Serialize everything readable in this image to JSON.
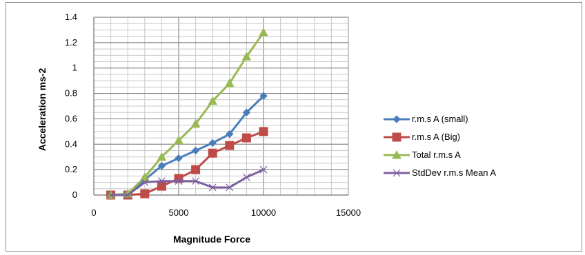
{
  "chart_data": {
    "type": "line",
    "title": "",
    "xlabel": "Magnitude Force",
    "ylabel": "Acceleration ms-2",
    "xlim": [
      0,
      15000
    ],
    "ylim": [
      0,
      1.4
    ],
    "x_ticks": [
      "0",
      "5000",
      "10000",
      "15000"
    ],
    "y_ticks": [
      "0",
      "0.2",
      "0.4",
      "0.6",
      "0.8",
      "1",
      "1.2",
      "1.4"
    ],
    "grid": true,
    "legend_position": "right",
    "x": [
      1000,
      2000,
      3000,
      4000,
      5000,
      6000,
      7000,
      8000,
      9000,
      10000
    ],
    "series": [
      {
        "name": "r.m.s A (small)",
        "color": "#4a7ebb",
        "marker": "diamond",
        "values": [
          0,
          0.01,
          0.12,
          0.23,
          0.29,
          0.35,
          0.41,
          0.48,
          0.65,
          0.78
        ]
      },
      {
        "name": "r.m.s A (Big)",
        "color": "#be4b48",
        "marker": "square",
        "values": [
          0,
          0,
          0.01,
          0.07,
          0.13,
          0.2,
          0.33,
          0.39,
          0.45,
          0.5
        ]
      },
      {
        "name": "Total r.m.s A",
        "color": "#98b954",
        "marker": "triangle",
        "values": [
          0,
          0.01,
          0.14,
          0.3,
          0.43,
          0.56,
          0.74,
          0.88,
          1.09,
          1.28
        ]
      },
      {
        "name": "StdDev r.m.s Mean A",
        "color": "#7d60a0",
        "marker": "x",
        "values": [
          0,
          0,
          0.1,
          0.11,
          0.11,
          0.11,
          0.06,
          0.06,
          0.14,
          0.2
        ]
      }
    ]
  }
}
